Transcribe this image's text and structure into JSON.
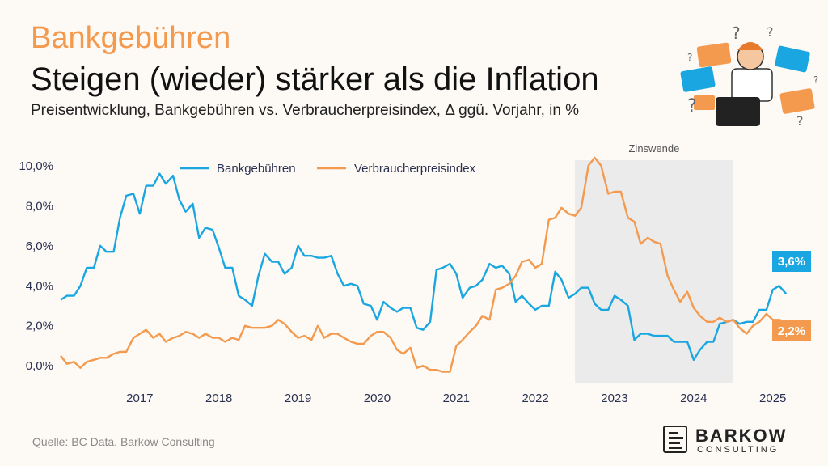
{
  "header": {
    "kicker": "Bankgebühren",
    "title": "Steigen (wieder) stärker als die Inflation",
    "subtitle": "Preisentwicklung, Bankgebühren vs. Verbraucherpreisindex, Δ ggü. Vorjahr, in %"
  },
  "source": "Quelle: BC Data, Barkow Consulting",
  "logo": {
    "name": "BARKOW",
    "sub": "CONSULTING"
  },
  "colors": {
    "bank": "#1aa6e0",
    "vpi": "#f39a4f",
    "shade": "#ebebeb",
    "kicker": "#f39a4f"
  },
  "chart_data": {
    "type": "line",
    "ylim": [
      -0.8,
      10.6
    ],
    "xlim": [
      2016.0,
      2025.33
    ],
    "y_ticks": [
      "0,0%",
      "2,0%",
      "4,0%",
      "6,0%",
      "8,0%",
      "10,0%"
    ],
    "y_tick_values": [
      0,
      2,
      4,
      6,
      8,
      10
    ],
    "x_ticks": [
      "2017",
      "2018",
      "2019",
      "2020",
      "2021",
      "2022",
      "2023",
      "2024",
      "2025"
    ],
    "x_tick_values": [
      2017,
      2018,
      2019,
      2020,
      2021,
      2022,
      2023,
      2024,
      2025
    ],
    "shaded_region": {
      "label": "Zinswende",
      "x": [
        2022.5,
        2024.5
      ]
    },
    "legend_position": "top",
    "series": [
      {
        "name": "Bankgebühren",
        "end_label": "3,6%",
        "points": [
          [
            2016.0,
            3.3
          ],
          [
            2016.08,
            3.5
          ],
          [
            2016.17,
            3.5
          ],
          [
            2016.25,
            4.0
          ],
          [
            2016.33,
            4.9
          ],
          [
            2016.42,
            4.9
          ],
          [
            2016.5,
            6.0
          ],
          [
            2016.58,
            5.7
          ],
          [
            2016.67,
            5.7
          ],
          [
            2016.75,
            7.4
          ],
          [
            2016.83,
            8.5
          ],
          [
            2016.92,
            8.6
          ],
          [
            2017.0,
            7.6
          ],
          [
            2017.08,
            9.0
          ],
          [
            2017.17,
            9.0
          ],
          [
            2017.25,
            9.6
          ],
          [
            2017.33,
            9.1
          ],
          [
            2017.42,
            9.5
          ],
          [
            2017.5,
            8.3
          ],
          [
            2017.58,
            7.7
          ],
          [
            2017.67,
            8.1
          ],
          [
            2017.75,
            6.4
          ],
          [
            2017.83,
            6.9
          ],
          [
            2017.92,
            6.8
          ],
          [
            2018.0,
            5.9
          ],
          [
            2018.08,
            4.9
          ],
          [
            2018.17,
            4.9
          ],
          [
            2018.25,
            3.5
          ],
          [
            2018.33,
            3.3
          ],
          [
            2018.42,
            3.0
          ],
          [
            2018.5,
            4.5
          ],
          [
            2018.58,
            5.6
          ],
          [
            2018.67,
            5.2
          ],
          [
            2018.75,
            5.2
          ],
          [
            2018.83,
            4.6
          ],
          [
            2018.92,
            4.9
          ],
          [
            2019.0,
            6.0
          ],
          [
            2019.08,
            5.5
          ],
          [
            2019.17,
            5.5
          ],
          [
            2019.25,
            5.4
          ],
          [
            2019.33,
            5.4
          ],
          [
            2019.42,
            5.5
          ],
          [
            2019.5,
            4.6
          ],
          [
            2019.58,
            4.0
          ],
          [
            2019.67,
            4.1
          ],
          [
            2019.75,
            4.0
          ],
          [
            2019.83,
            3.1
          ],
          [
            2019.92,
            3.0
          ],
          [
            2020.0,
            2.3
          ],
          [
            2020.08,
            3.2
          ],
          [
            2020.17,
            2.9
          ],
          [
            2020.25,
            2.7
          ],
          [
            2020.33,
            2.9
          ],
          [
            2020.42,
            2.9
          ],
          [
            2020.5,
            1.9
          ],
          [
            2020.58,
            1.8
          ],
          [
            2020.67,
            2.2
          ],
          [
            2020.75,
            4.8
          ],
          [
            2020.83,
            4.9
          ],
          [
            2020.92,
            5.1
          ],
          [
            2021.0,
            4.6
          ],
          [
            2021.08,
            3.4
          ],
          [
            2021.17,
            3.9
          ],
          [
            2021.25,
            4.0
          ],
          [
            2021.33,
            4.3
          ],
          [
            2021.42,
            5.1
          ],
          [
            2021.5,
            4.9
          ],
          [
            2021.58,
            5.0
          ],
          [
            2021.67,
            4.6
          ],
          [
            2021.75,
            3.2
          ],
          [
            2021.83,
            3.5
          ],
          [
            2021.92,
            3.1
          ],
          [
            2022.0,
            2.8
          ],
          [
            2022.08,
            3.0
          ],
          [
            2022.17,
            3.0
          ],
          [
            2022.25,
            4.7
          ],
          [
            2022.33,
            4.3
          ],
          [
            2022.42,
            3.4
          ],
          [
            2022.5,
            3.6
          ],
          [
            2022.58,
            3.9
          ],
          [
            2022.67,
            3.9
          ],
          [
            2022.75,
            3.1
          ],
          [
            2022.83,
            2.8
          ],
          [
            2022.92,
            2.8
          ],
          [
            2023.0,
            3.5
          ],
          [
            2023.08,
            3.3
          ],
          [
            2023.17,
            3.0
          ],
          [
            2023.25,
            1.3
          ],
          [
            2023.33,
            1.6
          ],
          [
            2023.42,
            1.6
          ],
          [
            2023.5,
            1.5
          ],
          [
            2023.58,
            1.5
          ],
          [
            2023.67,
            1.5
          ],
          [
            2023.75,
            1.2
          ],
          [
            2023.83,
            1.2
          ],
          [
            2023.92,
            1.2
          ],
          [
            2024.0,
            0.3
          ],
          [
            2024.08,
            0.8
          ],
          [
            2024.17,
            1.2
          ],
          [
            2024.25,
            1.2
          ],
          [
            2024.33,
            2.1
          ],
          [
            2024.42,
            2.2
          ],
          [
            2024.5,
            2.3
          ],
          [
            2024.58,
            2.1
          ],
          [
            2024.67,
            2.2
          ],
          [
            2024.75,
            2.2
          ],
          [
            2024.83,
            2.8
          ],
          [
            2024.92,
            2.8
          ],
          [
            2025.0,
            3.8
          ],
          [
            2025.08,
            4.0
          ],
          [
            2025.17,
            3.6
          ]
        ]
      },
      {
        "name": "Verbraucherpreisindex",
        "end_label": "2,2%",
        "points": [
          [
            2016.0,
            0.5
          ],
          [
            2016.08,
            0.1
          ],
          [
            2016.17,
            0.2
          ],
          [
            2016.25,
            -0.1
          ],
          [
            2016.33,
            0.2
          ],
          [
            2016.42,
            0.3
          ],
          [
            2016.5,
            0.4
          ],
          [
            2016.58,
            0.4
          ],
          [
            2016.67,
            0.6
          ],
          [
            2016.75,
            0.7
          ],
          [
            2016.83,
            0.7
          ],
          [
            2016.92,
            1.4
          ],
          [
            2017.0,
            1.6
          ],
          [
            2017.08,
            1.8
          ],
          [
            2017.17,
            1.4
          ],
          [
            2017.25,
            1.6
          ],
          [
            2017.33,
            1.2
          ],
          [
            2017.42,
            1.4
          ],
          [
            2017.5,
            1.5
          ],
          [
            2017.58,
            1.7
          ],
          [
            2017.67,
            1.6
          ],
          [
            2017.75,
            1.4
          ],
          [
            2017.83,
            1.6
          ],
          [
            2017.92,
            1.4
          ],
          [
            2018.0,
            1.4
          ],
          [
            2018.08,
            1.2
          ],
          [
            2018.17,
            1.4
          ],
          [
            2018.25,
            1.3
          ],
          [
            2018.33,
            2.0
          ],
          [
            2018.42,
            1.9
          ],
          [
            2018.5,
            1.9
          ],
          [
            2018.58,
            1.9
          ],
          [
            2018.67,
            2.0
          ],
          [
            2018.75,
            2.3
          ],
          [
            2018.83,
            2.1
          ],
          [
            2018.92,
            1.7
          ],
          [
            2019.0,
            1.4
          ],
          [
            2019.08,
            1.5
          ],
          [
            2019.17,
            1.3
          ],
          [
            2019.25,
            2.0
          ],
          [
            2019.33,
            1.4
          ],
          [
            2019.42,
            1.6
          ],
          [
            2019.5,
            1.6
          ],
          [
            2019.58,
            1.4
          ],
          [
            2019.67,
            1.2
          ],
          [
            2019.75,
            1.1
          ],
          [
            2019.83,
            1.1
          ],
          [
            2019.92,
            1.5
          ],
          [
            2020.0,
            1.7
          ],
          [
            2020.08,
            1.7
          ],
          [
            2020.17,
            1.4
          ],
          [
            2020.25,
            0.8
          ],
          [
            2020.33,
            0.6
          ],
          [
            2020.42,
            0.9
          ],
          [
            2020.5,
            -0.1
          ],
          [
            2020.58,
            0.0
          ],
          [
            2020.67,
            -0.2
          ],
          [
            2020.75,
            -0.2
          ],
          [
            2020.83,
            -0.3
          ],
          [
            2020.92,
            -0.3
          ],
          [
            2021.0,
            1.0
          ],
          [
            2021.08,
            1.3
          ],
          [
            2021.17,
            1.7
          ],
          [
            2021.25,
            2.0
          ],
          [
            2021.33,
            2.5
          ],
          [
            2021.42,
            2.3
          ],
          [
            2021.5,
            3.8
          ],
          [
            2021.58,
            3.9
          ],
          [
            2021.67,
            4.1
          ],
          [
            2021.75,
            4.5
          ],
          [
            2021.83,
            5.2
          ],
          [
            2021.92,
            5.3
          ],
          [
            2022.0,
            4.9
          ],
          [
            2022.08,
            5.1
          ],
          [
            2022.17,
            7.3
          ],
          [
            2022.25,
            7.4
          ],
          [
            2022.33,
            7.9
          ],
          [
            2022.42,
            7.6
          ],
          [
            2022.5,
            7.5
          ],
          [
            2022.58,
            7.9
          ],
          [
            2022.67,
            10.0
          ],
          [
            2022.75,
            10.4
          ],
          [
            2022.83,
            10.0
          ],
          [
            2022.92,
            8.6
          ],
          [
            2023.0,
            8.7
          ],
          [
            2023.08,
            8.7
          ],
          [
            2023.17,
            7.4
          ],
          [
            2023.25,
            7.2
          ],
          [
            2023.33,
            6.1
          ],
          [
            2023.42,
            6.4
          ],
          [
            2023.5,
            6.2
          ],
          [
            2023.58,
            6.1
          ],
          [
            2023.67,
            4.5
          ],
          [
            2023.75,
            3.8
          ],
          [
            2023.83,
            3.2
          ],
          [
            2023.92,
            3.7
          ],
          [
            2024.0,
            2.9
          ],
          [
            2024.08,
            2.5
          ],
          [
            2024.17,
            2.2
          ],
          [
            2024.25,
            2.2
          ],
          [
            2024.33,
            2.4
          ],
          [
            2024.42,
            2.2
          ],
          [
            2024.5,
            2.3
          ],
          [
            2024.58,
            1.9
          ],
          [
            2024.67,
            1.6
          ],
          [
            2024.75,
            2.0
          ],
          [
            2024.83,
            2.2
          ],
          [
            2024.92,
            2.6
          ],
          [
            2025.0,
            2.3
          ],
          [
            2025.08,
            2.3
          ],
          [
            2025.17,
            2.2
          ]
        ]
      }
    ]
  }
}
